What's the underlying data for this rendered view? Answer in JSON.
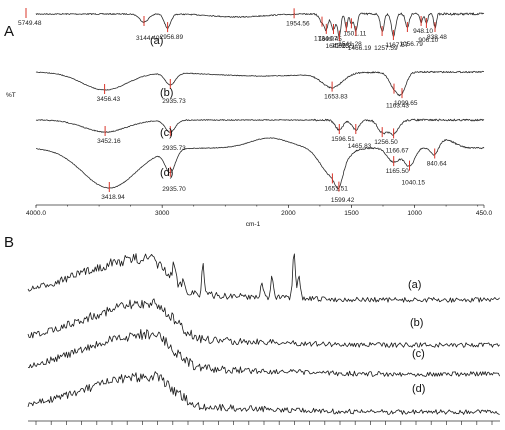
{
  "chart_data": [
    {
      "panel": "A",
      "type": "line",
      "title": "",
      "xlabel": "cm-1",
      "ylabel": "%T",
      "xlim": [
        4000,
        450
      ],
      "x_ticks": [
        4000,
        3000,
        2000,
        1500,
        1000,
        450
      ],
      "x_tick_labels": [
        "4000.0",
        "3000",
        "2000",
        "1500",
        "1000",
        "450.0"
      ],
      "axis_color": "#333333",
      "series_color": "#2a2a2a",
      "marker_color": "#d9352a",
      "series": [
        {
          "label": "(a)",
          "peaks": [
            {
              "x": 5749.48,
              "text": "5749.48"
            },
            {
              "x": 3144.4,
              "text": "3144.40"
            },
            {
              "x": 2956.89,
              "text": "2956.89"
            },
            {
              "x": 1734.07,
              "text": "1734.07"
            },
            {
              "x": 1699.45,
              "text": "1699.45"
            },
            {
              "x": 1642.25,
              "text": "1642.25"
            },
            {
              "x": 1596.21,
              "text": "1596.21"
            },
            {
              "x": 1541.28,
              "text": "1541.28"
            },
            {
              "x": 1501.11,
              "text": "1501.11"
            },
            {
              "x": 1466.19,
              "text": "1466.19"
            },
            {
              "x": 1954.56,
              "text": "1954.56"
            },
            {
              "x": 1257.59,
              "text": "1257.59"
            },
            {
              "x": 1167.57,
              "text": "1167.57"
            },
            {
              "x": 1056.79,
              "text": "1056.79"
            },
            {
              "x": 948.1,
              "text": "948.10"
            },
            {
              "x": 906.1,
              "text": "906.10"
            },
            {
              "x": 838.48,
              "text": "838.48"
            }
          ]
        },
        {
          "label": "(b)",
          "peaks": [
            {
              "x": 3456.43,
              "text": "3456.43"
            },
            {
              "x": 2935.73,
              "text": "2935.73"
            },
            {
              "x": 1653.83,
              "text": "1653.83"
            },
            {
              "x": 1163.43,
              "text": "1163.43"
            },
            {
              "x": 1099.65,
              "text": "1099.65"
            }
          ]
        },
        {
          "label": "(c)",
          "peaks": [
            {
              "x": 3452.16,
              "text": "3452.16"
            },
            {
              "x": 2935.73,
              "text": "2935.73"
            },
            {
              "x": 1596.51,
              "text": "1596.51"
            },
            {
              "x": 1465.83,
              "text": "1465.83"
            },
            {
              "x": 1256.5,
              "text": "1256.50"
            },
            {
              "x": 1166.67,
              "text": "1166.67"
            }
          ]
        },
        {
          "label": "(d)",
          "peaks": [
            {
              "x": 3418.94,
              "text": "3418.94"
            },
            {
              "x": 2935.7,
              "text": "2935.70"
            },
            {
              "x": 1651.51,
              "text": "1651.51"
            },
            {
              "x": 1599.42,
              "text": "1599.42"
            },
            {
              "x": 1165.5,
              "text": "1165.50"
            },
            {
              "x": 1040.15,
              "text": "1040.15"
            },
            {
              "x": 840.64,
              "text": "840.64"
            }
          ]
        }
      ]
    },
    {
      "panel": "B",
      "type": "line",
      "title": "",
      "xlabel": "",
      "ylabel": "",
      "series_color": "#1a1a1a",
      "series": [
        {
          "label": "(a)"
        },
        {
          "label": "(b)"
        },
        {
          "label": "(c)"
        },
        {
          "label": "(d)"
        }
      ]
    }
  ]
}
